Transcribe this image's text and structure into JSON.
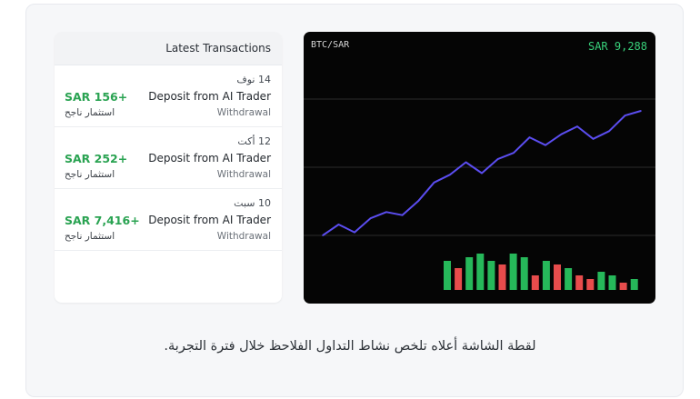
{
  "transactions": {
    "header": "Latest Transactions",
    "items": [
      {
        "date": "14 نوف",
        "title": "Deposit from AI Trader",
        "type": "Withdrawal",
        "amount": "SAR 156+",
        "note": "استثمار ناجح"
      },
      {
        "date": "12 أكت",
        "title": "Deposit from AI Trader",
        "type": "Withdrawal",
        "amount": "SAR 252+",
        "note": "استثمار ناجح"
      },
      {
        "date": "10 سبت",
        "title": "Deposit from AI Trader",
        "type": "Withdrawal",
        "amount": "SAR 7,416+",
        "note": "استثمار ناجح"
      }
    ]
  },
  "chart": {
    "pair": "BTC/SAR",
    "price": "SAR 9,288",
    "colors": {
      "line": "#5b4df0",
      "up": "#26b85a",
      "down": "#e74c4c",
      "grid": "#2a2a2a"
    }
  },
  "chart_data": {
    "type": "line",
    "title": "",
    "series": [
      {
        "values": [
          20,
          27,
          22,
          31,
          35,
          33,
          42,
          54,
          59,
          67,
          60,
          69,
          73,
          83,
          78,
          85,
          90,
          82,
          87,
          97,
          100
        ]
      }
    ],
    "volume": {
      "values": [
        8,
        6,
        9,
        10,
        8,
        7,
        10,
        9,
        4,
        8,
        7,
        6,
        4,
        3,
        5,
        4,
        2,
        3
      ],
      "direction": [
        "up",
        "down",
        "up",
        "up",
        "up",
        "down",
        "up",
        "up",
        "down",
        "up",
        "down",
        "up",
        "down",
        "down",
        "up",
        "up",
        "down",
        "up"
      ]
    },
    "grid": true
  },
  "caption": "لقطة الشاشة أعلاه تلخص نشاط التداول الفلاحظ خلال فترة التجربة."
}
